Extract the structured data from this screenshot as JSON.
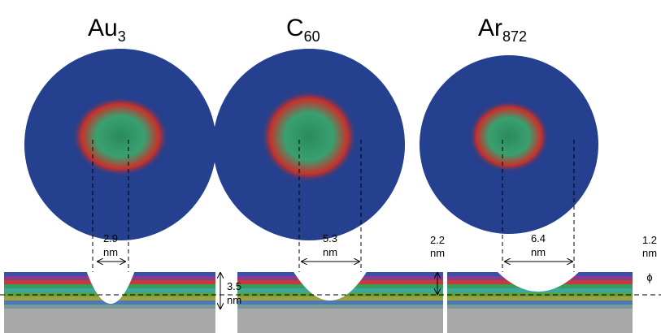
{
  "panels": [
    {
      "label": "Au",
      "subscript": "3",
      "width": "2.9",
      "width_unit": "nm"
    },
    {
      "label": "C",
      "subscript": "60",
      "width": "5.3",
      "width_unit": "nm"
    },
    {
      "label": "Ar",
      "subscript": "872",
      "width": "6.4",
      "width_unit": "nm"
    }
  ],
  "depths": [
    {
      "value": "3.5",
      "unit": "nm"
    },
    {
      "value": "2.2",
      "unit": "nm"
    },
    {
      "value": "1.2",
      "unit": "nm",
      "symbol": "ϕ"
    }
  ]
}
